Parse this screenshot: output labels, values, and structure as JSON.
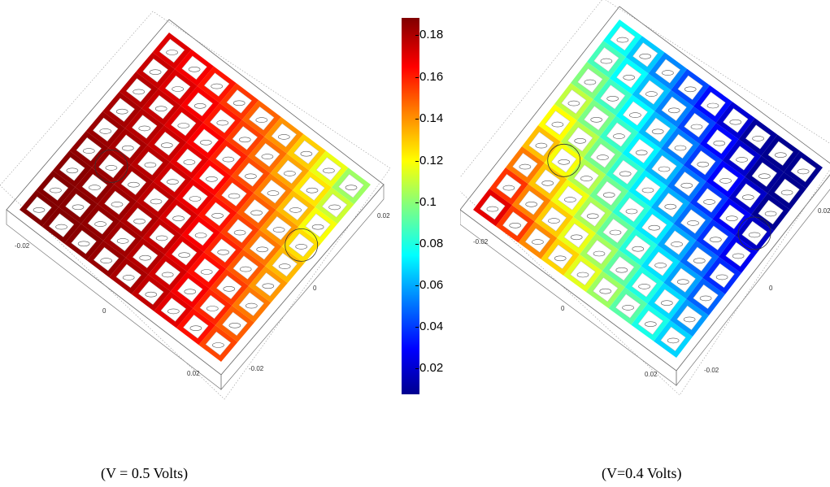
{
  "colorbar": {
    "ticks": [
      "0.18",
      "0.16",
      "0.14",
      "0.12",
      "0.1",
      "0.08",
      "0.06",
      "0.04",
      "0.02"
    ],
    "colormap": [
      "#00008f",
      "#0000ff",
      "#0080ff",
      "#00ffff",
      "#80ff80",
      "#ffff00",
      "#ff8000",
      "#ff0000",
      "#800000"
    ]
  },
  "left_plot": {
    "caption": "(V = 0.5 Volts)",
    "axis_labels": [
      "-0.02",
      "0.02",
      "0",
      "0",
      "0.02",
      "-0.02"
    ]
  },
  "right_plot": {
    "caption": "(V=0.4 Volts)",
    "axis_labels": [
      "-0.02",
      "0.02",
      "0",
      "0",
      "0.02",
      "-0.02"
    ]
  }
}
